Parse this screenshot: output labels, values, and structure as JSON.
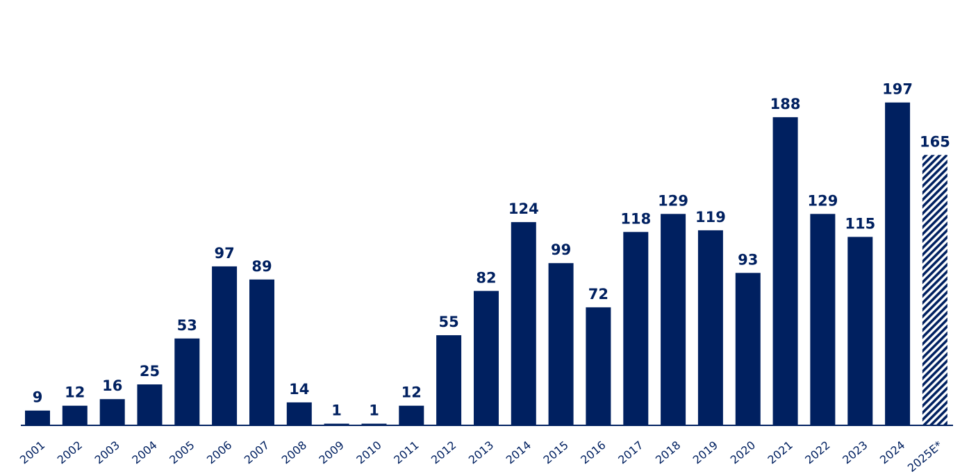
{
  "chart_data": {
    "type": "bar",
    "title": "",
    "xlabel": "",
    "ylabel": "",
    "categories": [
      "2001",
      "2002",
      "2003",
      "2004",
      "2005",
      "2006",
      "2007",
      "2008",
      "2009",
      "2010",
      "2011",
      "2012",
      "2013",
      "2014",
      "2015",
      "2016",
      "2017",
      "2018",
      "2019",
      "2020",
      "2021",
      "2022",
      "2023",
      "2024",
      "2025E*"
    ],
    "values": [
      9,
      12,
      16,
      25,
      53,
      97,
      89,
      14,
      1,
      1,
      12,
      55,
      82,
      124,
      99,
      72,
      118,
      129,
      119,
      93,
      188,
      129,
      115,
      197,
      165
    ],
    "estimated": [
      false,
      false,
      false,
      false,
      false,
      false,
      false,
      false,
      false,
      false,
      false,
      false,
      false,
      false,
      false,
      false,
      false,
      false,
      false,
      false,
      false,
      false,
      false,
      false,
      true
    ],
    "ylim": [
      0,
      260
    ],
    "grid": false,
    "legend": "none",
    "colors": {
      "bar": "#002060",
      "label": "#002060",
      "axis": "#002060",
      "estimate_hatch": "#002060"
    }
  }
}
